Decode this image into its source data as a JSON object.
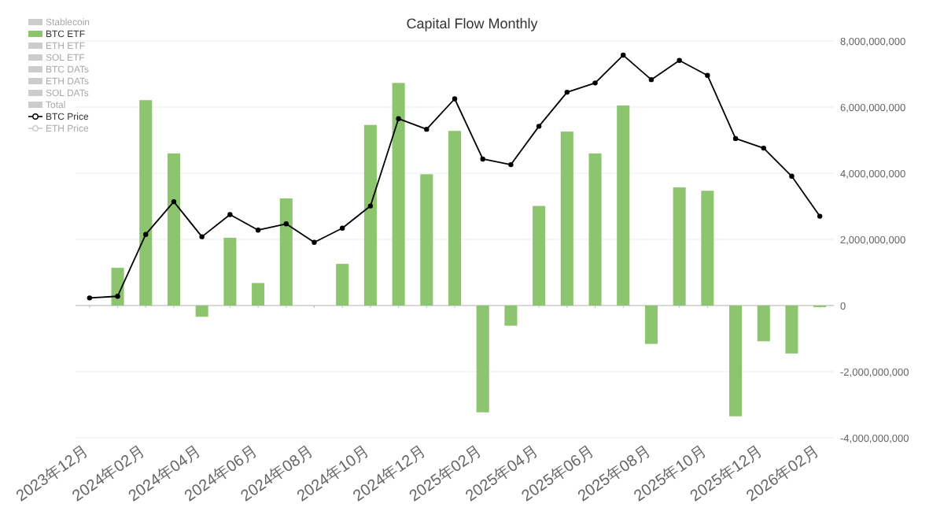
{
  "chart_data": {
    "type": "bar",
    "title": "Capital Flow Monthly",
    "categories": [
      "2023年12月",
      null,
      "2024年02月",
      null,
      "2024年04月",
      null,
      "2024年06月",
      null,
      "2024年08月",
      null,
      "2024年10月",
      null,
      "2024年12月",
      null,
      "2025年02月",
      null,
      "2025年04月",
      null,
      "2025年06月",
      null,
      "2025年08月",
      null,
      "2025年10月",
      null,
      "2025年12月",
      null,
      "2026年02月"
    ],
    "series": [
      {
        "name": "Stablecoin",
        "color": "#cccccc",
        "values": [
          null,
          null,
          null,
          null,
          null,
          null,
          null,
          null,
          null,
          null,
          null,
          null,
          null,
          null,
          null,
          null,
          null,
          null,
          null,
          null,
          null,
          null,
          null,
          null,
          null,
          null,
          null
        ]
      },
      {
        "name": "BTC ETF",
        "color": "#8cc56d",
        "values": [
          null,
          1140000000.0,
          6210000000.0,
          4600000000.0,
          -340000000.0,
          2050000000.0,
          680000000.0,
          3240000000.0,
          null,
          1260000000.0,
          5460000000.0,
          6730000000.0,
          3970000000.0,
          5280000000.0,
          -3230000000.0,
          -610000000.0,
          3010000000.0,
          5260000000.0,
          4600000000.0,
          6050000000.0,
          -1160000000.0,
          3570000000.0,
          3470000000.0,
          -3350000000.0,
          -1080000000.0,
          -1450000000.0,
          -50000000.0
        ]
      },
      {
        "name": "ETH ETF",
        "color": "#cccccc",
        "values": [
          null,
          null,
          null,
          null,
          null,
          null,
          null,
          null,
          null,
          null,
          null,
          null,
          null,
          null,
          null,
          null,
          null,
          null,
          null,
          null,
          null,
          null,
          null,
          null,
          null,
          null,
          null
        ]
      },
      {
        "name": "SOL ETF",
        "color": "#cccccc",
        "values": [
          null,
          null,
          null,
          null,
          null,
          null,
          null,
          null,
          null,
          null,
          null,
          null,
          null,
          null,
          null,
          null,
          null,
          null,
          null,
          null,
          null,
          null,
          null,
          null,
          null,
          null,
          null
        ]
      },
      {
        "name": "BTC DATs",
        "color": "#cccccc",
        "values": [
          null,
          null,
          null,
          null,
          null,
          null,
          null,
          null,
          null,
          null,
          null,
          null,
          null,
          null,
          null,
          null,
          null,
          null,
          null,
          null,
          null,
          null,
          null,
          null,
          null,
          null,
          null
        ]
      },
      {
        "name": "ETH DATs",
        "color": "#cccccc",
        "values": [
          null,
          null,
          null,
          null,
          null,
          null,
          null,
          null,
          null,
          null,
          null,
          null,
          null,
          null,
          null,
          null,
          null,
          null,
          null,
          null,
          null,
          null,
          null,
          null,
          null,
          null,
          null
        ]
      },
      {
        "name": "SOL DATs",
        "color": "#cccccc",
        "values": [
          null,
          null,
          null,
          null,
          null,
          null,
          null,
          null,
          null,
          null,
          null,
          null,
          null,
          null,
          null,
          null,
          null,
          null,
          null,
          null,
          null,
          null,
          null,
          null,
          null,
          null,
          null
        ]
      },
      {
        "name": "Total",
        "color": "#cccccc",
        "values": [
          null,
          null,
          null,
          null,
          null,
          null,
          null,
          null,
          null,
          null,
          null,
          null,
          null,
          null,
          null,
          null,
          null,
          null,
          null,
          null,
          null,
          null,
          null,
          null,
          null,
          null,
          null
        ]
      },
      {
        "name": "BTC Price",
        "color": "#000000",
        "type": "line",
        "marker": "circle",
        "values": [
          230000000.0,
          280000000.0,
          2150000000.0,
          3140000000.0,
          2080000000.0,
          2750000000.0,
          2280000000.0,
          2470000000.0,
          1910000000.0,
          2340000000.0,
          3010000000.0,
          5650000000.0,
          5330000000.0,
          6250000000.0,
          4430000000.0,
          4260000000.0,
          5420000000.0,
          6450000000.0,
          6730000000.0,
          7570000000.0,
          6830000000.0,
          7410000000.0,
          6960000000.0,
          5050000000.0,
          4760000000.0,
          3910000000.0,
          2700000000.0
        ]
      },
      {
        "name": "ETH Price",
        "color": "#cccccc",
        "type": "line",
        "marker": "circle",
        "values": [
          null,
          null,
          null,
          null,
          null,
          null,
          null,
          null,
          null,
          null,
          null,
          null,
          null,
          null,
          null,
          null,
          null,
          null,
          null,
          null,
          null,
          null,
          null,
          null,
          null,
          null,
          null
        ]
      }
    ],
    "ylim": [
      -4000000000.0,
      8000000000.0
    ],
    "yticks": [
      {
        "value": -4000000000.0,
        "label": "-4,000,000,000"
      },
      {
        "value": -2000000000.0,
        "label": "-2,000,000,000"
      },
      {
        "value": 0,
        "label": "0"
      },
      {
        "value": 2000000000.0,
        "label": "2,000,000,000"
      },
      {
        "value": 4000000000.0,
        "label": "4,000,000,000"
      },
      {
        "value": 6000000000.0,
        "label": "6,000,000,000"
      },
      {
        "value": 8000000000.0,
        "label": "8,000,000,000"
      }
    ],
    "grid": "y",
    "legend": "top left"
  }
}
